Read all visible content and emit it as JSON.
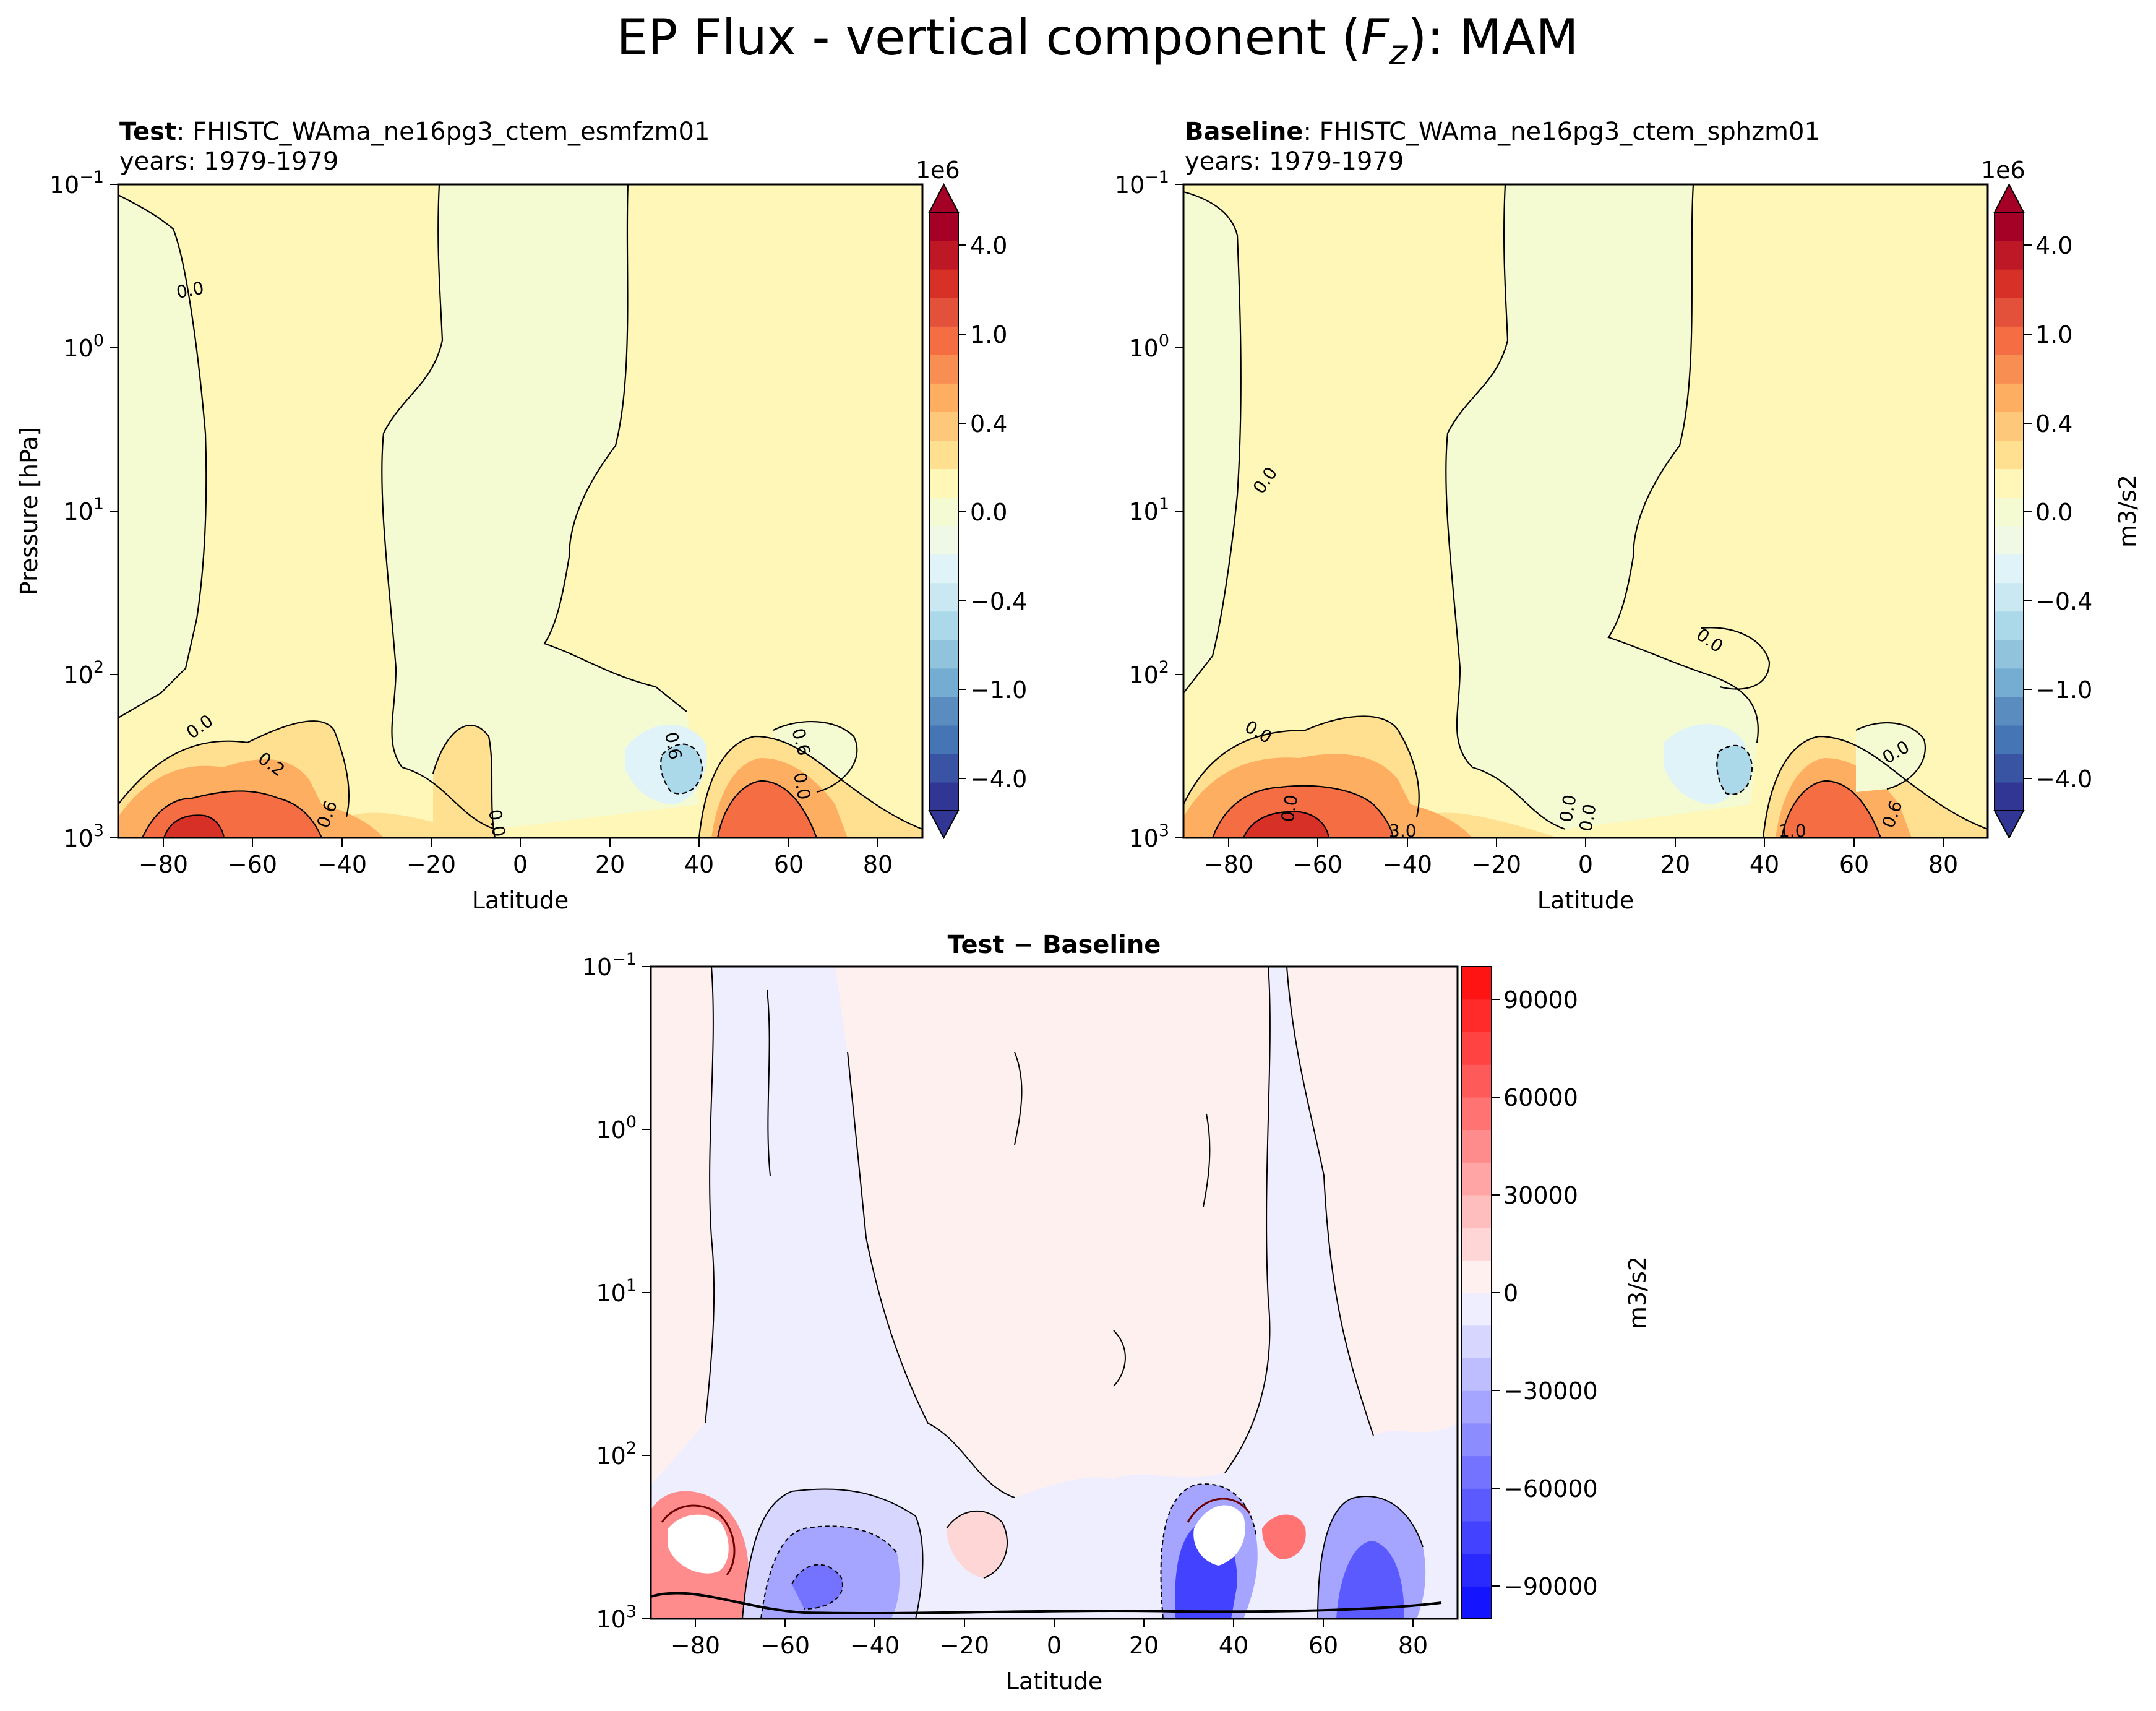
{
  "chart_data": {
    "type": "contour",
    "title": {
      "pre": "EP Flux - vertical component (",
      "var": "F",
      "sub": "z",
      "post": "): MAM"
    },
    "panels": [
      {
        "id": "test",
        "label": "Test",
        "case": ": FHISTC_WAma_ne16pg3_ctem_esmfzm01",
        "years": "years: 1979-1979",
        "xlabel": "Latitude",
        "ylabel": "Pressure [hPa]",
        "xlim": [
          -90,
          90
        ],
        "ylim_hpa": [
          1000,
          0.1
        ],
        "xticks": [
          "−80",
          "−60",
          "−40",
          "−20",
          "0",
          "20",
          "40",
          "60",
          "80"
        ],
        "yticks": [
          {
            "base": "10",
            "exp": "−1"
          },
          {
            "base": "10",
            "exp": "0"
          },
          {
            "base": "10",
            "exp": "1"
          },
          {
            "base": "10",
            "exp": "2"
          },
          {
            "base": "10",
            "exp": "3"
          }
        ],
        "contour_labels": [
          "0.0",
          "0.0",
          "0.2",
          "0.6",
          "0.6",
          "0.6",
          "0.0",
          "0.0"
        ],
        "features": [
          {
            "lat": -75,
            "p_hpa": 800,
            "value_1e6": 2.5
          },
          {
            "lat": -55,
            "p_hpa": 850,
            "value_1e6": 1.5
          },
          {
            "lat": 35,
            "p_hpa": 350,
            "value_1e6": -0.6
          },
          {
            "lat": 50,
            "p_hpa": 800,
            "value_1e6": 1.5
          }
        ]
      },
      {
        "id": "baseline",
        "label": "Baseline",
        "case": ": FHISTC_WAma_ne16pg3_ctem_sphzm01",
        "years": "years: 1979-1979",
        "xlabel": "Latitude",
        "xlim": [
          -90,
          90
        ],
        "ylim_hpa": [
          1000,
          0.1
        ],
        "xticks": [
          "−80",
          "−60",
          "−40",
          "−20",
          "0",
          "20",
          "40",
          "60",
          "80"
        ],
        "yticks": [
          {
            "base": "10",
            "exp": "−1"
          },
          {
            "base": "10",
            "exp": "0"
          },
          {
            "base": "10",
            "exp": "1"
          },
          {
            "base": "10",
            "exp": "2"
          },
          {
            "base": "10",
            "exp": "3"
          }
        ],
        "contour_labels": [
          "0.0",
          "0.0",
          "0.0",
          "0.0",
          "3.0",
          "0.0",
          "0.0",
          "0.6",
          "1.0",
          "0.0"
        ],
        "features": [
          {
            "lat": -60,
            "p_hpa": 800,
            "value_1e6": 2.0
          },
          {
            "lat": 35,
            "p_hpa": 350,
            "value_1e6": -0.6
          },
          {
            "lat": 50,
            "p_hpa": 800,
            "value_1e6": 1.5
          }
        ]
      },
      {
        "id": "diff",
        "label": "Test − Baseline",
        "xlabel": "Latitude",
        "xlim": [
          -90,
          90
        ],
        "ylim_hpa": [
          1000,
          0.1
        ],
        "xticks": [
          "−80",
          "−60",
          "−40",
          "−20",
          "0",
          "20",
          "40",
          "60",
          "80"
        ],
        "yticks": [
          {
            "base": "10",
            "exp": "−1"
          },
          {
            "base": "10",
            "exp": "0"
          },
          {
            "base": "10",
            "exp": "1"
          },
          {
            "base": "10",
            "exp": "2"
          },
          {
            "base": "10",
            "exp": "3"
          }
        ],
        "features": [
          {
            "lat": -80,
            "p_hpa": 500,
            "value": 100000
          },
          {
            "lat": -50,
            "p_hpa": 600,
            "value": -60000
          },
          {
            "lat": -25,
            "p_hpa": 400,
            "value": 15000
          },
          {
            "lat": 30,
            "p_hpa": 350,
            "value": -90000
          },
          {
            "lat": 50,
            "p_hpa": 350,
            "value": 50000
          },
          {
            "lat": 68,
            "p_hpa": 500,
            "value": -80000
          }
        ]
      }
    ],
    "colorbar_top": {
      "multiplier": "1e6",
      "label": "m3/s2",
      "ticks": [
        "4.0",
        "1.0",
        "0.4",
        "0.0",
        "−0.4",
        "−1.0",
        "−4.0"
      ],
      "colors": [
        "#313695",
        "#3a54a4",
        "#4575b4",
        "#5a8cc0",
        "#74add1",
        "#91c3dd",
        "#abd9e9",
        "#c9e8f1",
        "#e0f3f8",
        "#eff9e6",
        "#f4fbd2",
        "#fff7b8",
        "#fee090",
        "#fec87a",
        "#fdae61",
        "#f98e52",
        "#f46d43",
        "#e4513a",
        "#d73027",
        "#be1826",
        "#a50026"
      ]
    },
    "colorbar_diff": {
      "label": "m3/s2",
      "ticks": [
        "90000",
        "60000",
        "30000",
        "0",
        "−30000",
        "−60000",
        "−90000"
      ],
      "range": [
        -100000,
        100000
      ],
      "colors": [
        "#1414ff",
        "#2a2aff",
        "#4242ff",
        "#5a5aff",
        "#7373ff",
        "#8c8cff",
        "#a5a5ff",
        "#bebeff",
        "#d6d6ff",
        "#eeeeff",
        "#fff0f0",
        "#ffd6d6",
        "#ffbebe",
        "#ffa5a5",
        "#ff8c8c",
        "#ff7373",
        "#ff5a5a",
        "#ff4242",
        "#ff2a2a",
        "#ff1414"
      ]
    }
  }
}
